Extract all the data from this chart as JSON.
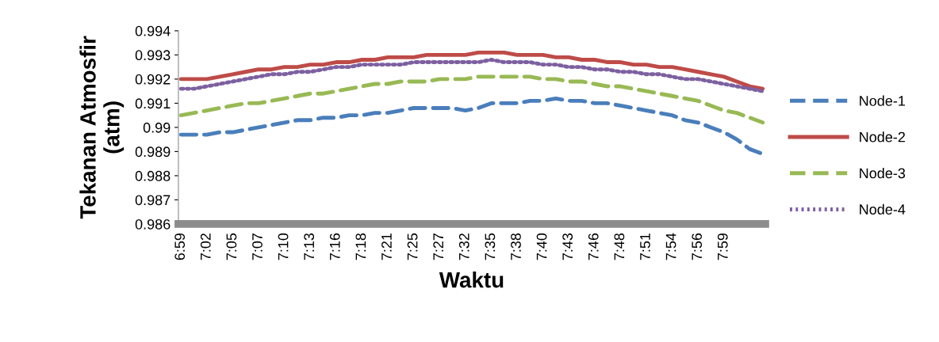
{
  "chart_data": {
    "type": "line",
    "xlabel": "Waktu",
    "ylabel": "Tekanan Atmosfir\n(atm)",
    "categories": [
      "6:59",
      null,
      "7:02",
      null,
      "7:05",
      null,
      "7:07",
      null,
      "7:10",
      null,
      "7:13",
      null,
      "7:16",
      null,
      "7:18",
      null,
      "7:21",
      null,
      "7:25",
      null,
      "7:27",
      null,
      "7:32",
      null,
      "7:35",
      null,
      "7:38",
      null,
      "7:40",
      null,
      "7:43",
      null,
      "7:46",
      null,
      "7:48",
      null,
      "7:51",
      null,
      "7:54",
      null,
      "7:56",
      null,
      "7:59",
      null,
      null,
      null
    ],
    "ylim": [
      0.986,
      0.994
    ],
    "yticks": [
      {
        "value": 0.986,
        "label": "0.986"
      },
      {
        "value": 0.987,
        "label": "0.987"
      },
      {
        "value": 0.988,
        "label": "0.988"
      },
      {
        "value": 0.989,
        "label": "0.989"
      },
      {
        "value": 0.99,
        "label": "0.99"
      },
      {
        "value": 0.991,
        "label": "0.991"
      },
      {
        "value": 0.992,
        "label": "0.992"
      },
      {
        "value": 0.993,
        "label": "0.993"
      },
      {
        "value": 0.994,
        "label": "0.994"
      }
    ],
    "grid": false,
    "legend": "right",
    "marker": "none",
    "series": [
      {
        "name": "Node-1",
        "color": "#4a7ebb",
        "line_style": "dashed",
        "values": [
          0.9897,
          0.9897,
          0.9897,
          0.9898,
          0.9898,
          0.9899,
          0.99,
          0.9901,
          0.9902,
          0.9903,
          0.9903,
          0.9904,
          0.9904,
          0.9905,
          0.9905,
          0.9906,
          0.9906,
          0.9907,
          0.9908,
          0.9908,
          0.9908,
          0.9908,
          0.9907,
          0.9908,
          0.991,
          0.991,
          0.991,
          0.9911,
          0.9911,
          0.9912,
          0.9911,
          0.9911,
          0.991,
          0.991,
          0.9909,
          0.9908,
          0.9907,
          0.9906,
          0.9905,
          0.9903,
          0.9902,
          0.99,
          0.9898,
          0.9895,
          0.9891,
          0.9889
        ]
      },
      {
        "name": "Node-2",
        "color": "#be4b48",
        "line_style": "solid",
        "values": [
          0.992,
          0.992,
          0.992,
          0.9921,
          0.9922,
          0.9923,
          0.9924,
          0.9924,
          0.9925,
          0.9925,
          0.9926,
          0.9926,
          0.9927,
          0.9927,
          0.9928,
          0.9928,
          0.9929,
          0.9929,
          0.9929,
          0.993,
          0.993,
          0.993,
          0.993,
          0.9931,
          0.9931,
          0.9931,
          0.993,
          0.993,
          0.993,
          0.9929,
          0.9929,
          0.9928,
          0.9928,
          0.9927,
          0.9927,
          0.9926,
          0.9926,
          0.9925,
          0.9925,
          0.9924,
          0.9923,
          0.9922,
          0.9921,
          0.9919,
          0.9917,
          0.9916
        ]
      },
      {
        "name": "Node-3",
        "color": "#98b954",
        "line_style": "dashed",
        "values": [
          0.9905,
          0.9906,
          0.9907,
          0.9908,
          0.9909,
          0.991,
          0.991,
          0.9911,
          0.9912,
          0.9913,
          0.9914,
          0.9914,
          0.9915,
          0.9916,
          0.9917,
          0.9918,
          0.9918,
          0.9919,
          0.9919,
          0.9919,
          0.992,
          0.992,
          0.992,
          0.9921,
          0.9921,
          0.9921,
          0.9921,
          0.9921,
          0.992,
          0.992,
          0.9919,
          0.9919,
          0.9918,
          0.9917,
          0.9917,
          0.9916,
          0.9915,
          0.9914,
          0.9913,
          0.9912,
          0.9911,
          0.9909,
          0.9907,
          0.9906,
          0.9904,
          0.9902
        ]
      },
      {
        "name": "Node-4",
        "color": "#7d60a0",
        "line_style": "dotted",
        "values": [
          0.9916,
          0.9916,
          0.9917,
          0.9918,
          0.9919,
          0.992,
          0.9921,
          0.9922,
          0.9922,
          0.9923,
          0.9923,
          0.9924,
          0.9925,
          0.9925,
          0.9926,
          0.9926,
          0.9926,
          0.9926,
          0.9927,
          0.9927,
          0.9927,
          0.9927,
          0.9927,
          0.9927,
          0.9928,
          0.9927,
          0.9927,
          0.9927,
          0.9926,
          0.9926,
          0.9925,
          0.9925,
          0.9924,
          0.9924,
          0.9923,
          0.9923,
          0.9922,
          0.9922,
          0.9921,
          0.992,
          0.992,
          0.9919,
          0.9918,
          0.9917,
          0.9916,
          0.9915
        ]
      }
    ]
  }
}
